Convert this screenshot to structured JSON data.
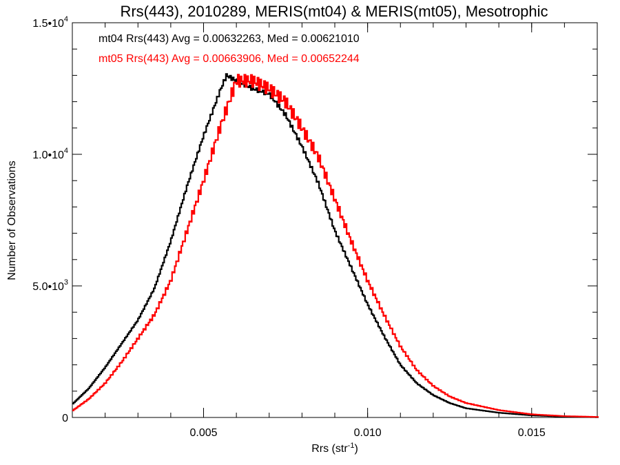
{
  "chart_data": {
    "type": "line",
    "title": "Rrs(443), 2010289, MERIS(mt04) & MERIS(mt05), Mesotrophic",
    "xlabel_main": "Rrs (str",
    "xlabel_sup": "-1",
    "xlabel_end": ")",
    "ylabel": "Number of Observations",
    "xlim": [
      0.001,
      0.017
    ],
    "ylim": [
      0,
      15000
    ],
    "x_ticks": [
      {
        "value": 0.005,
        "label": "0.005"
      },
      {
        "value": 0.01,
        "label": "0.010"
      },
      {
        "value": 0.015,
        "label": "0.015"
      }
    ],
    "y_ticks": [
      {
        "value": 0,
        "label": "0",
        "sup": ""
      },
      {
        "value": 5000,
        "label": "5.0•10",
        "sup": "3"
      },
      {
        "value": 10000,
        "label": "1.0•10",
        "sup": "4"
      },
      {
        "value": 15000,
        "label": "1.5•10",
        "sup": "4"
      }
    ],
    "legend_placement": "top-left",
    "series": [
      {
        "label": "mt04 Rrs(443) Avg = 0.00632263, Med = 0.00621010",
        "color": "#000000",
        "x": [
          0.001,
          0.0015,
          0.002,
          0.0025,
          0.003,
          0.0035,
          0.004,
          0.0045,
          0.005,
          0.0055,
          0.0057,
          0.006,
          0.0065,
          0.007,
          0.0075,
          0.008,
          0.0085,
          0.009,
          0.0095,
          0.01,
          0.0105,
          0.011,
          0.0115,
          0.012,
          0.0125,
          0.013,
          0.014,
          0.015,
          0.016,
          0.017
        ],
        "y": [
          500,
          1100,
          1900,
          2800,
          3700,
          4900,
          6700,
          8800,
          10700,
          12400,
          13000,
          12800,
          12500,
          12300,
          11500,
          10300,
          8900,
          7100,
          5700,
          4300,
          3100,
          2000,
          1300,
          850,
          550,
          350,
          180,
          80,
          30,
          10
        ]
      },
      {
        "label": "mt05 Rrs(443) Avg = 0.00663906, Med = 0.00652244",
        "color": "#ff0000",
        "x": [
          0.001,
          0.0015,
          0.002,
          0.0025,
          0.003,
          0.0035,
          0.004,
          0.0045,
          0.005,
          0.0055,
          0.006,
          0.0065,
          0.007,
          0.0075,
          0.008,
          0.0085,
          0.009,
          0.0095,
          0.01,
          0.0105,
          0.011,
          0.0115,
          0.012,
          0.0125,
          0.013,
          0.014,
          0.015,
          0.016,
          0.017
        ],
        "y": [
          250,
          700,
          1300,
          2100,
          3000,
          3900,
          5200,
          7100,
          9000,
          11000,
          12800,
          12800,
          12500,
          12000,
          11000,
          9900,
          8300,
          6700,
          5200,
          3900,
          2700,
          1800,
          1200,
          800,
          550,
          280,
          120,
          50,
          20
        ]
      }
    ]
  }
}
